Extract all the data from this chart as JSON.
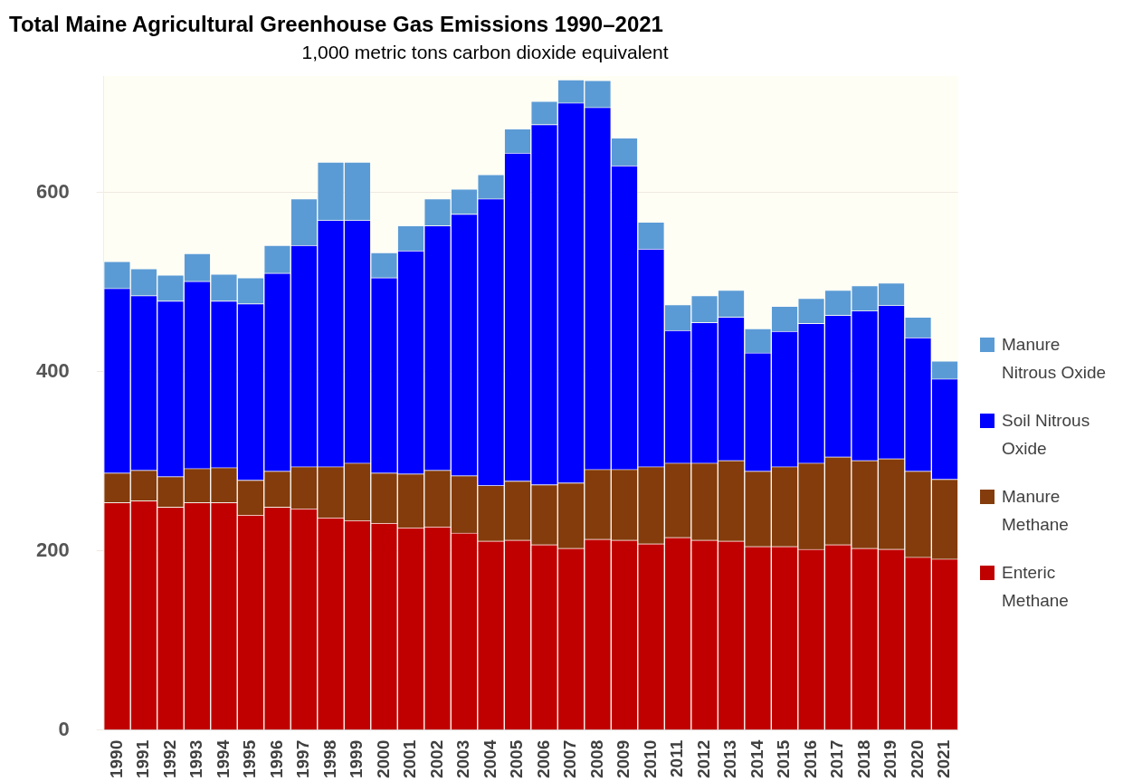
{
  "chart_data": {
    "type": "bar",
    "title": "Total Maine Agricultural Greenhouse Gas Emissions 1990–2021",
    "subtitle": "1,000 metric tons carbon dioxide equivalent",
    "categories": [
      "1990",
      "1991",
      "1992",
      "1993",
      "1994",
      "1995",
      "1996",
      "1997",
      "1998",
      "1999",
      "2000",
      "2001",
      "2002",
      "2003",
      "2004",
      "2005",
      "2006",
      "2007",
      "2008",
      "2009",
      "2010",
      "2011",
      "2012",
      "2013",
      "2014",
      "2015",
      "2016",
      "2017",
      "2018",
      "2019",
      "2020",
      "2021"
    ],
    "stacked": true,
    "ylim": [
      0,
      730
    ],
    "yticks": [
      0,
      200,
      400,
      600
    ],
    "grid": "y",
    "legend": "right",
    "series": [
      {
        "name": "Enteric Methane",
        "color": "#c00000",
        "values": [
          254,
          256,
          249,
          254,
          254,
          240,
          249,
          247,
          237,
          234,
          231,
          226,
          227,
          220,
          211,
          212,
          207,
          203,
          213,
          212,
          208,
          215,
          212,
          211,
          205,
          205,
          202,
          207,
          203,
          202,
          193,
          191
        ]
      },
      {
        "name": "Manure Methane",
        "color": "#843c0c",
        "values": [
          33,
          34,
          34,
          38,
          39,
          39,
          40,
          47,
          57,
          64,
          56,
          60,
          63,
          64,
          62,
          66,
          67,
          73,
          78,
          79,
          86,
          83,
          86,
          90,
          84,
          89,
          96,
          98,
          98,
          101,
          96,
          89
        ]
      },
      {
        "name": "Soil Nitrous Oxide",
        "color": "#0000ff",
        "values": [
          206,
          195,
          196,
          209,
          186,
          197,
          221,
          247,
          275,
          271,
          218,
          249,
          273,
          292,
          320,
          366,
          402,
          424,
          404,
          339,
          243,
          148,
          157,
          160,
          132,
          151,
          156,
          158,
          167,
          171,
          149,
          112
        ]
      },
      {
        "name": "Manure Nitrous Oxide",
        "color": "#5b9bd5",
        "values": [
          30,
          30,
          29,
          31,
          30,
          29,
          31,
          52,
          65,
          65,
          28,
          28,
          30,
          28,
          27,
          27,
          26,
          26,
          30,
          31,
          30,
          29,
          30,
          30,
          27,
          28,
          28,
          28,
          28,
          25,
          23,
          20
        ]
      }
    ]
  }
}
